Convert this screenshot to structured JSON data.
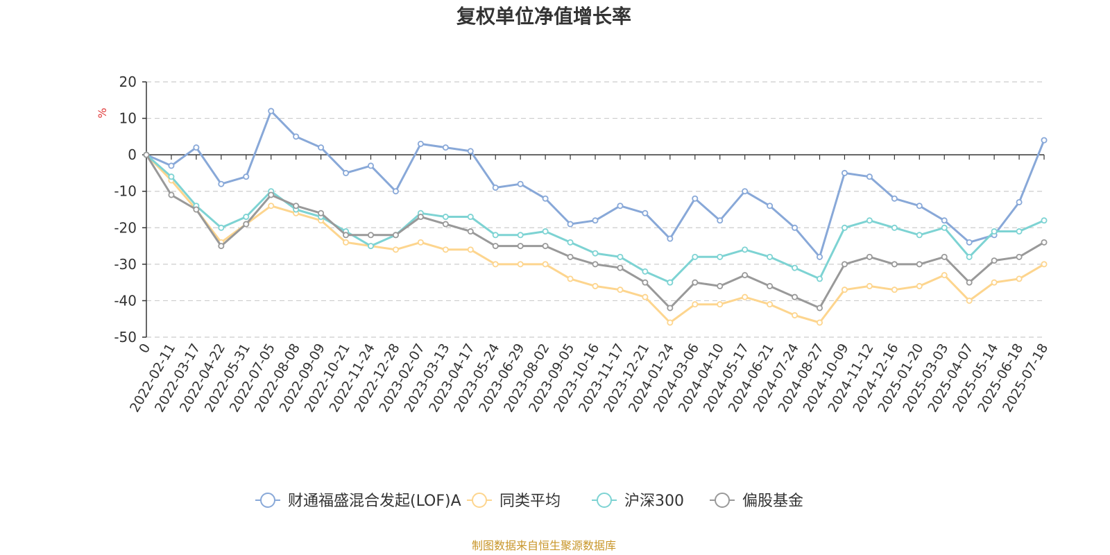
{
  "chart_data": {
    "type": "line",
    "title": "复权单位净值增长率",
    "ylabel": "%",
    "ylim": [
      -50,
      20
    ],
    "yticks": [
      20,
      10,
      0,
      -10,
      -20,
      -30,
      -40,
      -50
    ],
    "grid": true,
    "legend_position": "bottom",
    "source_note": "制图数据来自恒生聚源数据库",
    "x": [
      "0",
      "2022-02-11",
      "2022-03-17",
      "2022-04-22",
      "2022-05-31",
      "2022-07-05",
      "2022-08-08",
      "2022-09-09",
      "2022-10-21",
      "2022-11-24",
      "2022-12-28",
      "2023-02-07",
      "2023-03-13",
      "2023-04-17",
      "2023-05-24",
      "2023-06-29",
      "2023-08-02",
      "2023-09-05",
      "2023-10-16",
      "2023-11-17",
      "2023-12-21",
      "2024-01-24",
      "2024-03-06",
      "2024-04-10",
      "2024-05-17",
      "2024-06-21",
      "2024-07-24",
      "2024-08-27",
      "2024-10-09",
      "2024-11-12",
      "2024-12-16",
      "2025-01-20",
      "2025-03-03",
      "2025-04-07",
      "2025-05-14",
      "2025-06-18",
      "2025-07-18"
    ],
    "series": [
      {
        "name": "财通福盛混合发起(LOF)A",
        "color": "#88a8d8",
        "values": [
          0,
          -3,
          2,
          -8,
          -6,
          12,
          5,
          2,
          -5,
          -3,
          -10,
          3,
          2,
          1,
          -9,
          -8,
          -12,
          -19,
          -18,
          -14,
          -16,
          -23,
          -12,
          -18,
          -10,
          -14,
          -20,
          -28,
          -5,
          -6,
          -12,
          -14,
          -18,
          -24,
          -22,
          -13,
          4
        ]
      },
      {
        "name": "同类平均",
        "color": "#fdd58e",
        "values": [
          0,
          -7,
          -15,
          -24,
          -19,
          -14,
          -16,
          -18,
          -24,
          -25,
          -26,
          -24,
          -26,
          -26,
          -30,
          -30,
          -30,
          -34,
          -36,
          -37,
          -39,
          -46,
          -41,
          -41,
          -39,
          -41,
          -44,
          -46,
          -37,
          -36,
          -37,
          -36,
          -33,
          -40,
          -35,
          -34,
          -30
        ]
      },
      {
        "name": "沪深300",
        "color": "#7dd3d3",
        "values": [
          0,
          -6,
          -14,
          -20,
          -17,
          -10,
          -15,
          -17,
          -21,
          -25,
          -22,
          -16,
          -17,
          -17,
          -22,
          -22,
          -21,
          -24,
          -27,
          -28,
          -32,
          -35,
          -28,
          -28,
          -26,
          -28,
          -31,
          -34,
          -20,
          -18,
          -20,
          -22,
          -20,
          -28,
          -21,
          -21,
          -18
        ]
      },
      {
        "name": "偏股基金",
        "color": "#999999",
        "values": [
          0,
          -11,
          -15,
          -25,
          -19,
          -11,
          -14,
          -16,
          -22,
          -22,
          -22,
          -17,
          -19,
          -21,
          -25,
          -25,
          -25,
          -28,
          -30,
          -31,
          -35,
          -42,
          -35,
          -36,
          -33,
          -36,
          -39,
          -42,
          -30,
          -28,
          -30,
          -30,
          -28,
          -35,
          -29,
          -28,
          -24
        ]
      }
    ]
  }
}
